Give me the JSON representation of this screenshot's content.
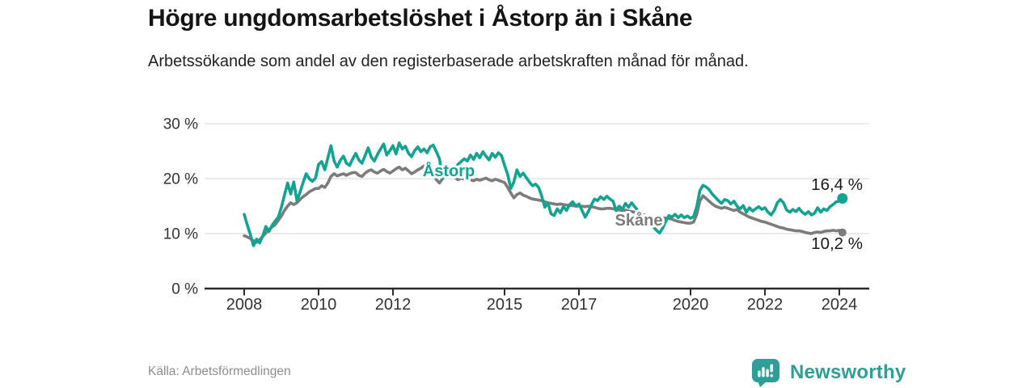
{
  "title": "Högre ungdomsarbetslöshet i Åstorp än i Skåne",
  "subtitle": "Arbetssökande som andel av den registerbaserade arbetskraften månad för månad.",
  "source": "Källa: Arbetsförmedlingen",
  "logo": {
    "text": "Newsworthy",
    "color": "#2E9E96"
  },
  "colors": {
    "astorp_line": "#12A391",
    "skane_line": "#7C7C7C",
    "grid": "#DDDDDD",
    "axis": "#2B2B2B",
    "axis_text": "#333333",
    "end_label_text": "#1A1A1A",
    "background": "#FFFFFF"
  },
  "chart_data": {
    "type": "line",
    "unit": "%",
    "x_start_year": 2008,
    "x_interval_months": 1,
    "ylim": [
      0,
      30
    ],
    "grid": "horizontal",
    "legend_position": "inline-labels",
    "y_ticks": [
      0,
      10,
      20,
      30
    ],
    "y_tick_labels": [
      "0 %",
      "10 %",
      "20 %",
      "30 %"
    ],
    "x_ticks": [
      2008,
      2010,
      2012,
      2015,
      2017,
      2020,
      2022,
      2024
    ],
    "x_tick_labels": [
      "2008",
      "2010",
      "2012",
      "2015",
      "2017",
      "2020",
      "2022",
      "2024"
    ],
    "series": [
      {
        "name": "Skåne",
        "color": "#7C7C7C",
        "end_label": "10,2 %",
        "end_value": 10.2,
        "values": [
          9.6,
          9.4,
          9.1,
          8.7,
          8.4,
          8.9,
          9.5,
          10.1,
          10.7,
          11.2,
          11.6,
          12.4,
          13.2,
          14.2,
          15.0,
          15.6,
          15.3,
          15.6,
          16.2,
          16.7,
          17.1,
          17.6,
          17.9,
          18.2,
          18.2,
          18.7,
          18.4,
          19.2,
          20.4,
          20.9,
          20.5,
          20.7,
          20.9,
          20.6,
          20.9,
          21.1,
          21.1,
          20.6,
          20.4,
          21.0,
          21.4,
          21.6,
          21.2,
          21.0,
          21.4,
          21.7,
          21.3,
          21.0,
          21.4,
          21.8,
          22.1,
          21.6,
          21.9,
          21.4,
          20.9,
          21.2,
          21.6,
          21.9,
          22.3,
          21.7,
          21.2,
          20.8,
          19.8,
          19.2,
          20.0,
          20.9,
          21.4,
          20.6,
          20.2,
          19.8,
          20.1,
          19.9,
          20.2,
          19.8,
          19.6,
          19.9,
          19.7,
          19.9,
          20.1,
          19.8,
          19.6,
          19.9,
          19.7,
          19.5,
          19.3,
          18.4,
          17.4,
          16.5,
          17.1,
          17.4,
          17.0,
          16.8,
          16.5,
          16.3,
          16.2,
          16.1,
          16.0,
          15.8,
          15.6,
          15.5,
          15.4,
          15.3,
          15.4,
          15.3,
          15.2,
          15.1,
          15.1,
          15.0,
          15.0,
          15.0,
          14.9,
          15.0,
          14.9,
          14.8,
          14.6,
          14.5,
          14.5,
          14.6,
          14.6,
          14.5,
          14.4,
          14.3,
          14.2,
          14.3,
          14.1,
          14.0,
          13.9,
          13.7,
          13.6,
          13.4,
          13.2,
          13.1,
          12.9,
          12.8,
          12.8,
          12.9,
          12.8,
          12.8,
          12.6,
          12.4,
          12.2,
          12.1,
          12.0,
          11.9,
          11.9,
          12.1,
          13.5,
          15.9,
          16.9,
          16.4,
          15.9,
          15.4,
          15.0,
          14.8,
          14.6,
          14.8,
          14.6,
          14.4,
          14.2,
          14.4,
          13.9,
          13.6,
          13.3,
          13.0,
          12.8,
          12.6,
          12.4,
          12.2,
          12.1,
          11.9,
          11.7,
          11.5,
          11.3,
          11.1,
          11.0,
          10.8,
          10.7,
          10.6,
          10.5,
          10.5,
          10.4,
          10.2,
          10.1,
          10.0,
          10.2,
          10.3,
          10.2,
          10.4,
          10.5,
          10.5,
          10.6,
          10.5,
          10.6,
          10.2
        ]
      },
      {
        "name": "Åstorp",
        "color": "#12A391",
        "end_label": "16,4 %",
        "end_value": 16.4,
        "values": [
          13.5,
          11.6,
          9.8,
          7.8,
          9.0,
          8.3,
          9.6,
          11.3,
          10.4,
          11.5,
          12.3,
          13.0,
          14.8,
          17.0,
          19.2,
          17.2,
          19.4,
          16.0,
          17.5,
          19.3,
          20.9,
          20.0,
          19.5,
          20.1,
          22.6,
          23.1,
          21.6,
          23.8,
          26.0,
          23.2,
          22.1,
          23.3,
          24.1,
          22.8,
          22.4,
          23.6,
          24.6,
          23.4,
          22.8,
          24.2,
          25.6,
          23.9,
          23.2,
          24.4,
          25.4,
          26.3,
          24.3,
          25.1,
          26.0,
          24.5,
          26.5,
          25.4,
          25.9,
          24.6,
          24.0,
          25.1,
          25.8,
          24.9,
          25.4,
          24.7,
          25.8,
          26.1,
          24.9,
          23.6,
          20.1,
          21.7,
          21.0,
          20.8,
          21.9,
          22.6,
          23.1,
          23.6,
          23.2,
          24.3,
          23.5,
          24.6,
          23.8,
          24.9,
          24.1,
          23.4,
          24.6,
          23.9,
          24.7,
          24.2,
          22.4,
          20.8,
          18.2,
          19.4,
          21.6,
          20.4,
          21.0,
          20.2,
          19.4,
          18.7,
          19.0,
          18.4,
          16.8,
          14.8,
          15.6,
          13.6,
          13.3,
          14.5,
          13.8,
          14.9,
          14.2,
          15.3,
          15.8,
          15.0,
          15.4,
          14.2,
          13.0,
          14.0,
          15.2,
          16.3,
          16.0,
          16.7,
          16.2,
          16.8,
          16.3,
          15.9,
          14.2,
          15.0,
          14.4,
          15.5,
          14.8,
          15.6,
          14.9,
          14.2,
          13.6,
          13.0,
          12.4,
          11.8,
          11.2,
          10.6,
          10.1,
          11.0,
          12.2,
          13.3,
          13.0,
          13.5,
          12.9,
          13.4,
          12.9,
          13.2,
          12.8,
          13.1,
          14.9,
          17.8,
          18.8,
          18.5,
          18.0,
          17.2,
          16.6,
          16.0,
          15.5,
          16.2,
          16.0,
          15.4,
          15.9,
          15.0,
          14.5,
          15.1,
          13.9,
          14.7,
          14.1,
          14.5,
          14.9,
          14.4,
          14.7,
          13.9,
          13.4,
          14.2,
          15.6,
          16.2,
          15.6,
          14.3,
          13.9,
          14.4,
          14.0,
          14.6,
          13.9,
          13.5,
          14.0,
          13.4,
          13.7,
          14.7,
          13.9,
          14.5,
          14.2,
          14.9,
          15.3,
          15.8,
          15.9,
          16.4
        ]
      }
    ]
  }
}
